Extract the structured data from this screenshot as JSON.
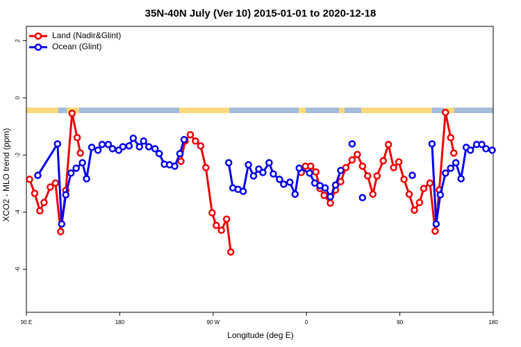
{
  "chart_data": {
    "type": "line",
    "title": "35N-40N July (Ver 10)   2015-01-01 to 2020-12-18",
    "xlabel": "Longitude (deg E)",
    "ylabel": "XCO2 - MLO trend (ppm)",
    "xlim": [
      90,
      540
    ],
    "ylim": [
      -7.5,
      2.5
    ],
    "xticks": [
      {
        "value": 90,
        "label": "90 E"
      },
      {
        "value": 180,
        "label": "180"
      },
      {
        "value": 270,
        "label": "90 W"
      },
      {
        "value": 360,
        "label": "0"
      },
      {
        "value": 450,
        "label": "90"
      },
      {
        "value": 540,
        "label": "180"
      }
    ],
    "yticks": [
      2,
      0,
      -2,
      -4,
      -6
    ],
    "legend": "top-left",
    "series": [
      {
        "name": "Land (Nadir&Glint)",
        "color": "#ee0000",
        "x": [
          93,
          98,
          103,
          107,
          113,
          118,
          123,
          128,
          134,
          139,
          142,
          null,
          239,
          243,
          248,
          253,
          258,
          263,
          269,
          273,
          278,
          283,
          287,
          null,
          355,
          359,
          364,
          369,
          373,
          377,
          383,
          388,
          393,
          398,
          404,
          409,
          414,
          419,
          424,
          428,
          434,
          439,
          444,
          449,
          454,
          459,
          464,
          469,
          473,
          479,
          484,
          488,
          494,
          499,
          502
        ],
        "values": [
          -2.85,
          -3.34,
          -3.95,
          -3.66,
          -3.12,
          -2.98,
          -4.68,
          -3.24,
          -0.54,
          -1.39,
          -1.93,
          null,
          -2.22,
          -1.51,
          -1.29,
          -1.51,
          -1.68,
          -2.44,
          -4.02,
          -4.46,
          -4.63,
          -4.24,
          -5.39,
          null,
          -2.61,
          -2.39,
          -2.39,
          -2.59,
          -3.17,
          -3.41,
          -3.68,
          -3.22,
          -2.93,
          -2.44,
          -2.17,
          -1.98,
          -2.39,
          -2.73,
          -3.37,
          -2.73,
          -2.2,
          -1.63,
          -2.44,
          -2.24,
          -2.85,
          -3.37,
          -3.93,
          -3.66,
          -3.17,
          -2.98,
          -4.66,
          -3.22,
          -0.51,
          -1.39,
          -1.93
        ]
      },
      {
        "name": "Ocean (Glint)",
        "color": "#0000ee",
        "x": [
          101,
          120,
          124,
          128,
          133,
          138,
          144,
          148,
          153,
          159,
          163,
          169,
          173,
          179,
          183,
          189,
          193,
          199,
          203,
          208,
          214,
          218,
          223,
          228,
          233,
          238,
          242,
          null,
          285,
          289,
          294,
          299,
          304,
          309,
          314,
          318,
          324,
          328,
          334,
          338,
          344,
          349,
          353,
          363,
          368,
          373,
          378,
          383,
          388,
          393,
          null,
          404,
          null,
          414,
          null,
          462,
          null,
          481,
          485,
          489,
          494,
          499,
          504,
          509,
          514,
          518,
          524,
          529,
          533,
          539
        ],
        "values": [
          -2.71,
          -1.61,
          -4.41,
          -3.39,
          -2.63,
          -2.46,
          -2.27,
          -2.83,
          -1.73,
          -1.83,
          -1.63,
          -1.63,
          -1.78,
          -1.83,
          -1.71,
          -1.68,
          -1.41,
          -1.71,
          -1.51,
          -1.71,
          -1.78,
          -1.95,
          -2.32,
          -2.34,
          -2.39,
          -1.95,
          -1.46,
          null,
          -2.27,
          -3.15,
          -3.2,
          -3.27,
          -2.34,
          -2.73,
          -2.49,
          -2.61,
          -2.27,
          -2.66,
          -2.85,
          -3.02,
          -2.95,
          -3.37,
          -2.46,
          -2.63,
          -2.98,
          -3.07,
          -3.15,
          -3.46,
          -3.05,
          -2.54,
          null,
          -1.61,
          null,
          -3.49,
          null,
          -2.71,
          null,
          -1.61,
          -4.41,
          -3.39,
          -2.63,
          -2.46,
          -2.27,
          -2.83,
          -1.73,
          -1.83,
          -1.63,
          -1.63,
          -1.78,
          -1.83
        ]
      }
    ]
  }
}
